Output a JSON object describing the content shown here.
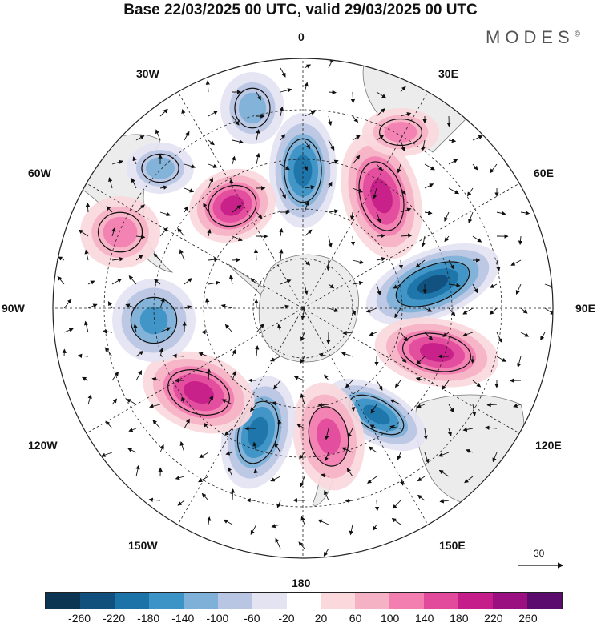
{
  "title": "Base 22/03/2025 00 UTC, valid 29/03/2025 00 UTC",
  "brand": "MODES",
  "brand_mark": "©",
  "meridian_labels": [
    "0",
    "30E",
    "60E",
    "90E",
    "120E",
    "150E",
    "180",
    "150W",
    "120W",
    "90W",
    "60W",
    "30W"
  ],
  "vector_scale_label": "30",
  "colorbar": {
    "ticks": [
      "-260",
      "-220",
      "-180",
      "-140",
      "-100",
      "-60",
      "-20",
      "20",
      "60",
      "100",
      "140",
      "180",
      "220",
      "260"
    ],
    "colors": [
      "#0b3552",
      "#114f7c",
      "#1c73a8",
      "#3c93c5",
      "#7fb1d8",
      "#b8c5e3",
      "#e4e3f2",
      "#ffffff",
      "#fad8dc",
      "#f6b2c5",
      "#f27fb0",
      "#e24b9c",
      "#c51d89",
      "#9a1081",
      "#5b0a6e"
    ]
  },
  "map_colors": {
    "land": "#ececec",
    "coast": "#777777",
    "negative": "#2e7fb6",
    "positive": "#e24b9c"
  }
}
